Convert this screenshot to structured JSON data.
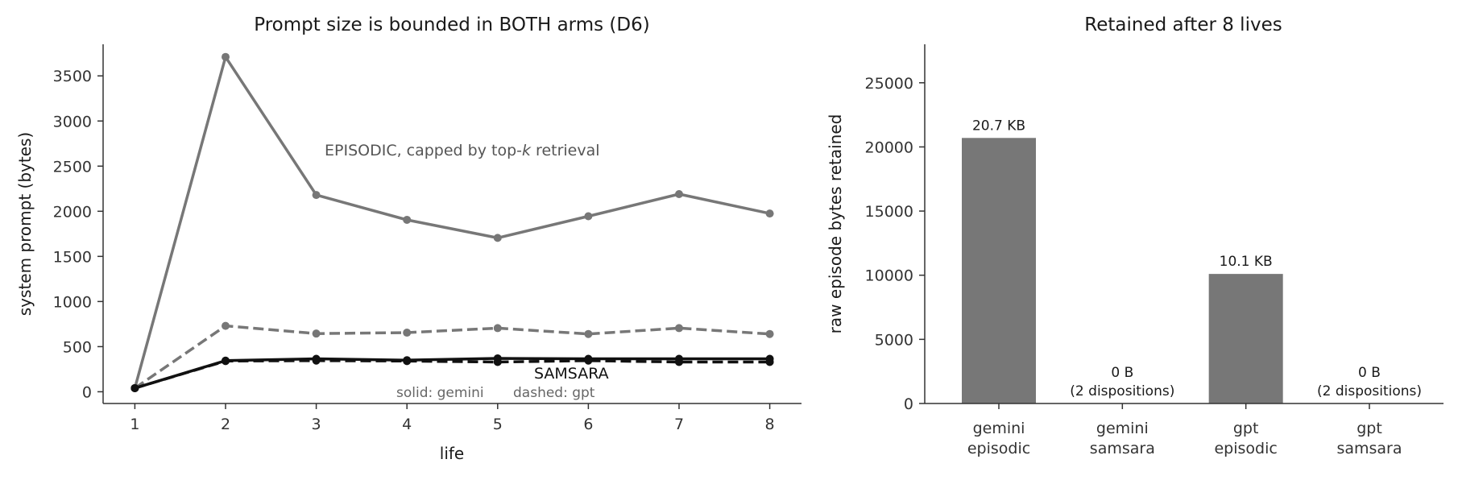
{
  "chart_data": [
    {
      "type": "line",
      "title": "Prompt size is bounded in BOTH arms (D6)",
      "xlabel": "life",
      "ylabel": "system prompt (bytes)",
      "x": [
        1,
        2,
        3,
        4,
        5,
        6,
        7,
        8
      ],
      "xlim": [
        0.65,
        8.35
      ],
      "ylim": [
        -130,
        3850
      ],
      "yticks": [
        0,
        500,
        1000,
        1500,
        2000,
        2500,
        3000,
        3500
      ],
      "series": [
        {
          "values": [
            40,
            3710,
            2180,
            1905,
            1705,
            1945,
            2190,
            1975
          ],
          "color": "#777777",
          "dash": false
        },
        {
          "values": [
            40,
            730,
            645,
            655,
            705,
            640,
            705,
            640
          ],
          "color": "#777777",
          "dash": true
        },
        {
          "values": [
            40,
            345,
            365,
            350,
            370,
            365,
            365,
            365
          ],
          "color": "#111111",
          "dash": false
        },
        {
          "values": [
            40,
            340,
            345,
            340,
            330,
            345,
            330,
            330
          ],
          "color": "#111111",
          "dash": true
        }
      ],
      "annotations": {
        "episodic_prefix": "EPISODIC, capped by top-",
        "episodic_k": "k",
        "episodic_suffix": " retrieval",
        "samsara": "SAMSARA",
        "solid_note": "solid: gemini",
        "dashed_note": "dashed: gpt"
      },
      "grid": false
    },
    {
      "type": "bar",
      "title": "Retained after 8 lives",
      "xlabel": "",
      "ylabel": "raw episode bytes retained",
      "categories": [
        [
          "gemini",
          "episodic"
        ],
        [
          "gemini",
          "samsara"
        ],
        [
          "gpt",
          "episodic"
        ],
        [
          "gpt",
          "samsara"
        ]
      ],
      "values": [
        20700,
        0,
        10100,
        0
      ],
      "bar_labels": [
        [
          "20.7 KB"
        ],
        [
          "0 B",
          "(2 dispositions)"
        ],
        [
          "10.1 KB"
        ],
        [
          "0 B",
          "(2 dispositions)"
        ]
      ],
      "ylim": [
        0,
        28000
      ],
      "yticks": [
        0,
        5000,
        10000,
        15000,
        20000,
        25000
      ],
      "bar_color": "#777777",
      "grid": false
    }
  ]
}
